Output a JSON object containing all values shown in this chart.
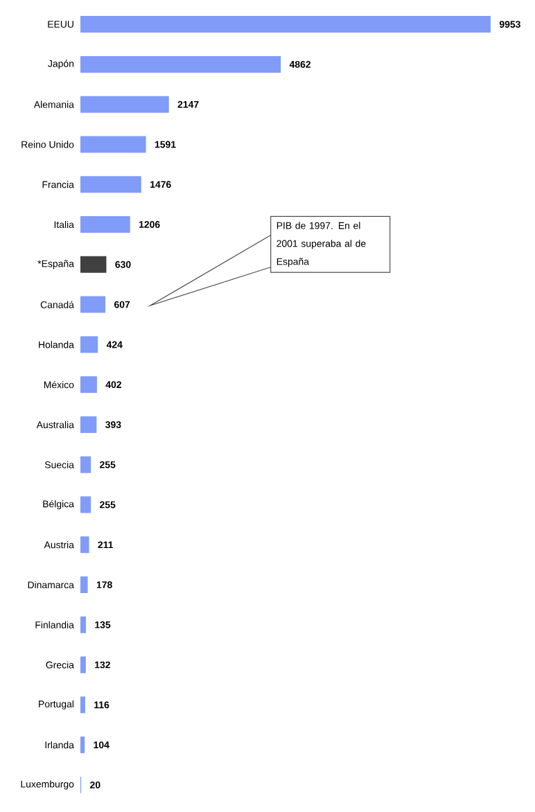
{
  "chart_data": {
    "type": "bar",
    "orientation": "horizontal",
    "data_labels": true,
    "categories": [
      "EEUU",
      "Japón",
      "Alemania",
      "Reino Unido",
      "Francia",
      "Italia",
      "*España",
      "Canadá",
      "Holanda",
      "México",
      "Australia",
      "Suecia",
      "Bélgica",
      "Austria",
      "Dinamarca",
      "Finlandia",
      "Grecia",
      "Portugal",
      "Irlanda",
      "Luxemburgo"
    ],
    "values": [
      9953,
      4862,
      2147,
      1591,
      1476,
      1206,
      630,
      607,
      424,
      402,
      393,
      255,
      255,
      211,
      178,
      135,
      132,
      116,
      104,
      20
    ],
    "colors": [
      "#809cf8",
      "#809cf8",
      "#809cf8",
      "#809cf8",
      "#809cf8",
      "#809cf8",
      "#404040",
      "#809cf8",
      "#809cf8",
      "#809cf8",
      "#809cf8",
      "#809cf8",
      "#809cf8",
      "#809cf8",
      "#809cf8",
      "#809cf8",
      "#809cf8",
      "#809cf8",
      "#809cf8",
      "#809cf8"
    ],
    "annotations": [
      "PIB de 1997. En el 2001 superaba al de España"
    ]
  }
}
